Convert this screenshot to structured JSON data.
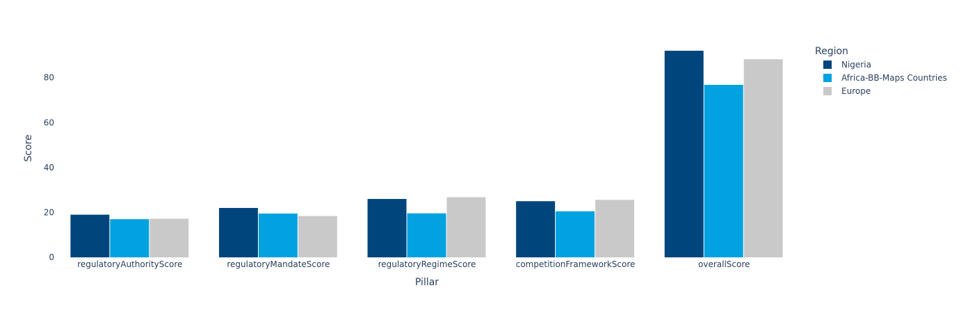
{
  "chart_data": {
    "type": "bar",
    "title": "",
    "xlabel": "Pillar",
    "ylabel": "Score",
    "ylim": [
      0,
      96
    ],
    "yticks": [
      0,
      20,
      40,
      60,
      80
    ],
    "grid": false,
    "legend_title": "Region",
    "legend_position": "top-right",
    "categories": [
      "regulatoryAuthorityScore",
      "regulatoryMandateScore",
      "regulatoryRegimeScore",
      "competitionFrameworkScore",
      "overallScore"
    ],
    "series": [
      {
        "name": "Nigeria",
        "color": "#00457c",
        "values": [
          19,
          22,
          26,
          25,
          92
        ]
      },
      {
        "name": "Africa-BB-Maps Countries",
        "color": "#00a2e0",
        "values": [
          17,
          19.5,
          19.6,
          20.5,
          76.8
        ]
      },
      {
        "name": "Europe",
        "color": "#c9c9c9",
        "values": [
          17.2,
          18.4,
          26.8,
          25.6,
          88.2
        ]
      }
    ]
  }
}
